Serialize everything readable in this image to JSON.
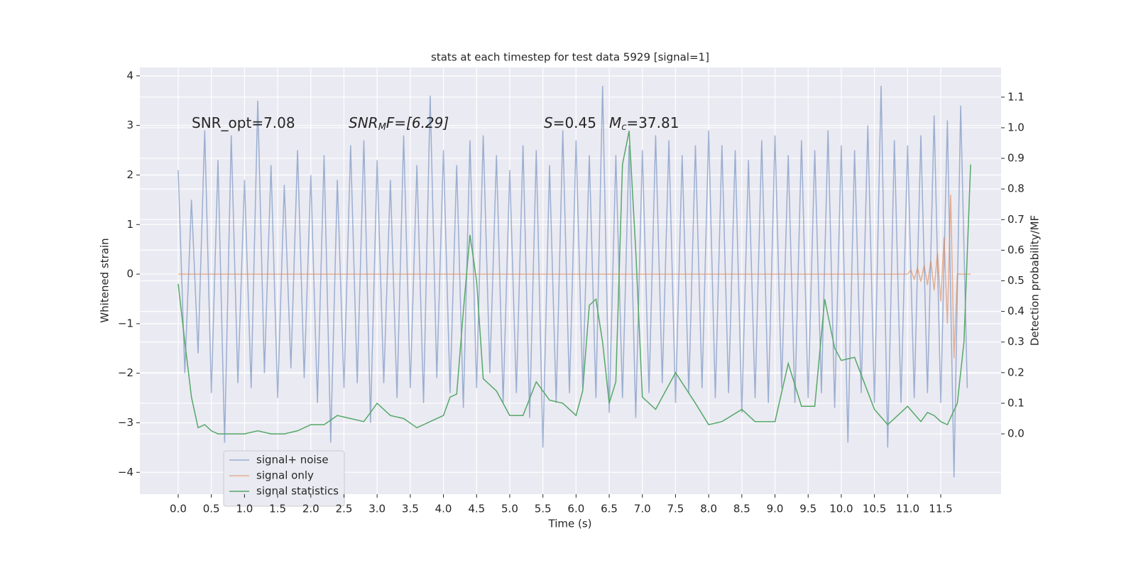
{
  "chart_data": {
    "type": "line",
    "title": "stats at each timestep for test data 5929 [signal=1]",
    "xlabel": "Time (s)",
    "ylabel": "Whitened strain",
    "y2label": "Detection probability/MF",
    "annotations": [
      [
        "SNR_opt=7.08"
      ],
      [
        "SNR",
        "M",
        "F=[6.29]"
      ],
      [
        "S",
        "=0.45"
      ],
      [
        "M",
        "c",
        "=37.81"
      ]
    ],
    "xlim": [
      -0.578,
      12.41
    ],
    "ylim": [
      -4.44,
      4.17
    ],
    "y2lim": [
      -0.197,
      1.197
    ],
    "xticks": [
      {
        "value": 0,
        "label": "0.0"
      },
      {
        "value": 0.5,
        "label": "0.5"
      },
      {
        "value": 1,
        "label": "1.0"
      },
      {
        "value": 1.5,
        "label": "1.5"
      },
      {
        "value": 2,
        "label": "2.0"
      },
      {
        "value": 2.5,
        "label": "2.5"
      },
      {
        "value": 3,
        "label": "3.0"
      },
      {
        "value": 3.5,
        "label": "3.5"
      },
      {
        "value": 4,
        "label": "4.0"
      },
      {
        "value": 4.5,
        "label": "4.5"
      },
      {
        "value": 5,
        "label": "5.0"
      },
      {
        "value": 5.5,
        "label": "5.5"
      },
      {
        "value": 6,
        "label": "6.0"
      },
      {
        "value": 6.5,
        "label": "6.5"
      },
      {
        "value": 7,
        "label": "7.0"
      },
      {
        "value": 7.5,
        "label": "7.5"
      },
      {
        "value": 8,
        "label": "8.0"
      },
      {
        "value": 8.5,
        "label": "8.5"
      },
      {
        "value": 9,
        "label": "9.0"
      },
      {
        "value": 9.5,
        "label": "9.5"
      },
      {
        "value": 10,
        "label": "10.0"
      },
      {
        "value": 10.5,
        "label": "10.5"
      },
      {
        "value": 11,
        "label": "11.0"
      },
      {
        "value": 11.5,
        "label": "11.5"
      }
    ],
    "yticks": [
      {
        "value": -4,
        "label": "−4"
      },
      {
        "value": -3,
        "label": "−3"
      },
      {
        "value": -2,
        "label": "−2"
      },
      {
        "value": -1,
        "label": "−1"
      },
      0,
      1,
      2,
      3,
      4
    ],
    "y2ticks": [
      {
        "value": 0,
        "label": "0.0"
      },
      {
        "value": 0.1,
        "label": "0.1"
      },
      {
        "value": 0.2,
        "label": "0.2"
      },
      {
        "value": 0.3,
        "label": "0.3"
      },
      {
        "value": 0.4,
        "label": "0.4"
      },
      {
        "value": 0.5,
        "label": "0.5"
      },
      {
        "value": 0.6,
        "label": "0.6"
      },
      {
        "value": 0.7,
        "label": "0.7"
      },
      {
        "value": 0.8,
        "label": "0.8"
      },
      {
        "value": 0.9,
        "label": "0.9"
      },
      {
        "value": 1,
        "label": "1.0"
      },
      {
        "value": 1.1,
        "label": "1.1"
      }
    ],
    "grid": true,
    "legend": "lower left",
    "series": [
      {
        "name": "signal+ noise",
        "color": "#4c72b0",
        "opacity": 0.5,
        "x": [
          0,
          0.1,
          0.2,
          0.3,
          0.4,
          0.5,
          0.6,
          0.7,
          0.8,
          0.9,
          1,
          1.1,
          1.2,
          1.3,
          1.4,
          1.5,
          1.6,
          1.7,
          1.8,
          1.9,
          2,
          2.1,
          2.2,
          2.3,
          2.4,
          2.5,
          2.6,
          2.7,
          2.8,
          2.9,
          3,
          3.1,
          3.2,
          3.3,
          3.4,
          3.5,
          3.6,
          3.7,
          3.8,
          3.9,
          4,
          4.1,
          4.2,
          4.3,
          4.4,
          4.5,
          4.6,
          4.7,
          4.8,
          4.9,
          5,
          5.1,
          5.2,
          5.3,
          5.4,
          5.5,
          5.6,
          5.7,
          5.8,
          5.9,
          6,
          6.1,
          6.2,
          6.3,
          6.4,
          6.5,
          6.6,
          6.7,
          6.8,
          6.9,
          7,
          7.1,
          7.2,
          7.3,
          7.4,
          7.5,
          7.6,
          7.7,
          7.8,
          7.9,
          8,
          8.1,
          8.2,
          8.3,
          8.4,
          8.5,
          8.6,
          8.7,
          8.8,
          8.9,
          9,
          9.1,
          9.2,
          9.3,
          9.4,
          9.5,
          9.6,
          9.7,
          9.8,
          9.9,
          10,
          10.1,
          10.2,
          10.3,
          10.4,
          10.5,
          10.6,
          10.7,
          10.8,
          10.9,
          11,
          11.1,
          11.2,
          11.3,
          11.4,
          11.5,
          11.6,
          11.7,
          11.8,
          11.9
        ],
        "values": [
          2.1,
          -2.0,
          1.5,
          -1.6,
          2.9,
          -2.4,
          2.3,
          -3.4,
          2.8,
          -2.2,
          1.9,
          -2.3,
          3.5,
          -2.0,
          2.2,
          -2.5,
          1.8,
          -1.9,
          2.5,
          -2.1,
          2.0,
          -2.6,
          2.4,
          -3.4,
          1.9,
          -2.3,
          2.6,
          -2.2,
          2.7,
          -3.0,
          2.3,
          -2.2,
          1.9,
          -2.5,
          2.8,
          -2.3,
          2.2,
          -2.6,
          3.6,
          -2.1,
          2.5,
          -2.4,
          2.2,
          -2.7,
          2.7,
          -2.3,
          2.8,
          -2.0,
          2.4,
          -2.6,
          2.1,
          -2.4,
          2.6,
          -2.9,
          2.5,
          -3.5,
          2.2,
          -2.6,
          2.9,
          -2.4,
          2.7,
          -2.3,
          2.4,
          -2.5,
          3.8,
          -2.8,
          2.4,
          -2.5,
          2.6,
          -2.9,
          2.5,
          -2.4,
          2.8,
          -2.2,
          2.7,
          -2.6,
          2.4,
          -2.4,
          2.6,
          -2.3,
          2.9,
          -2.5,
          2.6,
          -2.4,
          2.5,
          -2.8,
          2.3,
          -2.5,
          2.7,
          -2.6,
          2.8,
          -2.3,
          2.4,
          -2.6,
          2.7,
          -2.5,
          2.5,
          -2.4,
          2.9,
          -2.7,
          2.6,
          -3.4,
          2.5,
          -2.4,
          3.0,
          -2.6,
          3.8,
          -3.5,
          2.7,
          -2.6,
          2.6,
          -2.5,
          2.8,
          -2.4,
          3.2,
          -2.6,
          3.1,
          -4.1,
          3.4,
          -2.3
        ]
      },
      {
        "name": "signal only",
        "color": "#dd8452",
        "opacity": 0.6,
        "x": [
          0,
          0.5,
          1,
          1.5,
          2,
          2.5,
          3,
          3.5,
          4,
          4.5,
          5,
          5.5,
          6,
          6.5,
          7,
          7.5,
          8,
          8.5,
          9,
          9.5,
          10,
          10.5,
          11,
          11.05,
          11.1,
          11.15,
          11.2,
          11.25,
          11.3,
          11.35,
          11.4,
          11.45,
          11.5,
          11.55,
          11.6,
          11.65,
          11.7,
          11.75,
          11.95
        ],
        "values": [
          0,
          0,
          0,
          0,
          0,
          0,
          0,
          0,
          0,
          0,
          0,
          0,
          0,
          0,
          0,
          0,
          0,
          0,
          0,
          0,
          0,
          0,
          0,
          0.08,
          -0.1,
          0.12,
          -0.15,
          0.18,
          -0.22,
          0.27,
          -0.33,
          0.42,
          -0.55,
          0.75,
          -1.0,
          1.6,
          -1.7,
          0,
          0
        ]
      },
      {
        "name": "signal statistics",
        "color": "#55a868",
        "opacity": 1,
        "axis": "y2",
        "x": [
          0,
          0.1,
          0.2,
          0.3,
          0.4,
          0.5,
          0.6,
          0.8,
          1,
          1.2,
          1.4,
          1.6,
          1.8,
          2,
          2.2,
          2.4,
          2.6,
          2.8,
          3,
          3.2,
          3.4,
          3.6,
          3.8,
          4,
          4.1,
          4.2,
          4.3,
          4.4,
          4.5,
          4.6,
          4.8,
          5,
          5.2,
          5.4,
          5.6,
          5.8,
          6,
          6.1,
          6.2,
          6.3,
          6.4,
          6.5,
          6.6,
          6.7,
          6.8,
          6.9,
          7,
          7.2,
          7.5,
          7.8,
          8,
          8.2,
          8.5,
          8.7,
          9,
          9.2,
          9.4,
          9.6,
          9.75,
          9.9,
          10,
          10.2,
          10.5,
          10.7,
          11,
          11.2,
          11.3,
          11.4,
          11.5,
          11.6,
          11.75,
          11.85,
          11.95
        ],
        "values": [
          0.49,
          0.3,
          0.12,
          0.02,
          0.03,
          0.01,
          0,
          0,
          0,
          0.01,
          0,
          0,
          0.01,
          0.03,
          0.03,
          0.06,
          0.05,
          0.04,
          0.1,
          0.06,
          0.05,
          0.02,
          0.04,
          0.06,
          0.12,
          0.13,
          0.4,
          0.65,
          0.5,
          0.18,
          0.14,
          0.06,
          0.06,
          0.17,
          0.11,
          0.1,
          0.06,
          0.14,
          0.42,
          0.44,
          0.3,
          0.1,
          0.17,
          0.88,
          0.99,
          0.6,
          0.12,
          0.08,
          0.2,
          0.1,
          0.03,
          0.04,
          0.08,
          0.04,
          0.04,
          0.23,
          0.09,
          0.09,
          0.44,
          0.28,
          0.24,
          0.25,
          0.08,
          0.03,
          0.09,
          0.04,
          0.07,
          0.06,
          0.04,
          0.03,
          0.1,
          0.3,
          0.88
        ]
      }
    ]
  }
}
